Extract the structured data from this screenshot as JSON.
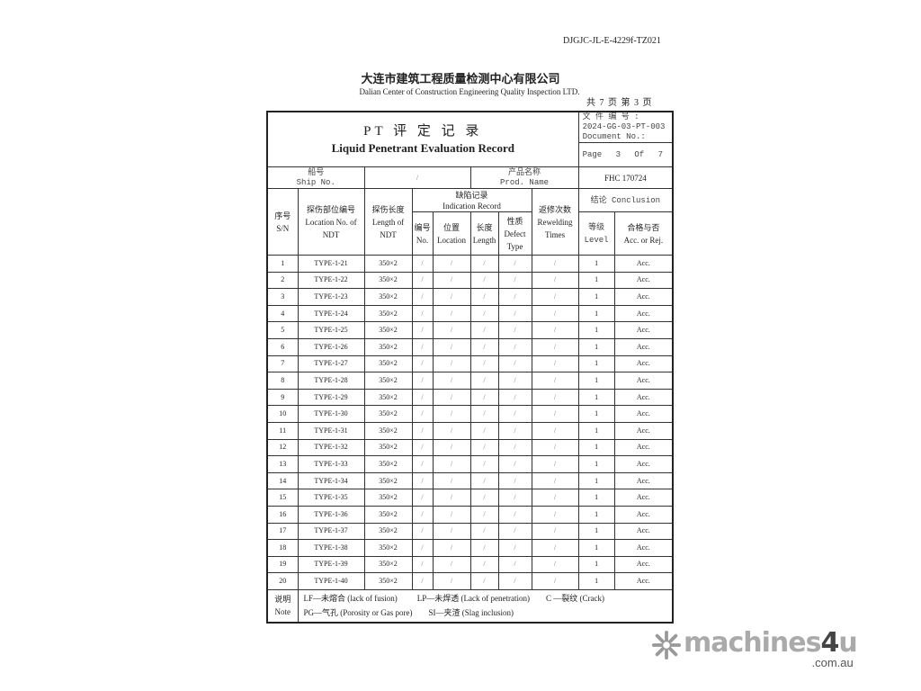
{
  "document_code": "DJGJC-JL-E-4229f-TZ021",
  "company_cn": "大连市建筑工程质量检测中心有限公司",
  "company_en": "Dalian Center of Construction Engineering Quality Inspection LTD.",
  "page_count_cn": "共 7 页   第 3 页",
  "form": {
    "title_cn": "PT 评 定 记 录",
    "title_en": "Liquid Penetrant Evaluation Record",
    "doc_no_label_cn": "文 件 编 号 :",
    "doc_no_value": "2024-GG-03-PT-003",
    "doc_no_label_en": "Document No.:",
    "page_label": "Page 3 Of 7",
    "ship_no_cn": "船号",
    "ship_no_en": "Ship No.",
    "ship_no_value": "/",
    "prod_name_cn": "产品名称",
    "prod_name_en": "Prod. Name",
    "prod_name_value": "FHC 170724"
  },
  "headers": {
    "sn_cn": "序号",
    "sn_en": "S/N",
    "loc_cn": "探伤部位编号",
    "loc_en": "Location No. of NDT",
    "len_cn": "探伤长度",
    "len_en": "Length of NDT",
    "ind_cn": "缺陷记录",
    "ind_en": "Indication Record",
    "no_cn": "编号",
    "no_en": "No.",
    "pos_cn": "位置",
    "pos_en": "Location",
    "ilen_cn": "长度",
    "ilen_en": "Length",
    "type_cn": "性质",
    "type_en": "Defect Type",
    "rew_cn": "返修次数",
    "rew_en": "Rewelding Times",
    "concl": "结论 Conclusion",
    "level_cn": "等级",
    "level_en": "Level",
    "acc_cn": "合格与否",
    "acc_en": "Acc. or Rej."
  },
  "rows": [
    {
      "sn": "1",
      "loc": "TYPE-1-21",
      "len": "350×2",
      "no": "/",
      "pos": "/",
      "ilen": "/",
      "type": "/",
      "rew": "/",
      "level": "1",
      "acc": "Acc."
    },
    {
      "sn": "2",
      "loc": "TYPE-1-22",
      "len": "350×2",
      "no": "/",
      "pos": "/",
      "ilen": "/",
      "type": "/",
      "rew": "/",
      "level": "1",
      "acc": "Acc."
    },
    {
      "sn": "3",
      "loc": "TYPE-1-23",
      "len": "350×2",
      "no": "/",
      "pos": "/",
      "ilen": "/",
      "type": "/",
      "rew": "/",
      "level": "1",
      "acc": "Acc."
    },
    {
      "sn": "4",
      "loc": "TYPE-1-24",
      "len": "350×2",
      "no": "/",
      "pos": "/",
      "ilen": "/",
      "type": "/",
      "rew": "/",
      "level": "1",
      "acc": "Acc."
    },
    {
      "sn": "5",
      "loc": "TYPE-1-25",
      "len": "350×2",
      "no": "/",
      "pos": "/",
      "ilen": "/",
      "type": "/",
      "rew": "/",
      "level": "1",
      "acc": "Acc."
    },
    {
      "sn": "6",
      "loc": "TYPE-1-26",
      "len": "350×2",
      "no": "/",
      "pos": "/",
      "ilen": "/",
      "type": "/",
      "rew": "/",
      "level": "1",
      "acc": "Acc."
    },
    {
      "sn": "7",
      "loc": "TYPE-1-27",
      "len": "350×2",
      "no": "/",
      "pos": "/",
      "ilen": "/",
      "type": "/",
      "rew": "/",
      "level": "1",
      "acc": "Acc."
    },
    {
      "sn": "8",
      "loc": "TYPE-1-28",
      "len": "350×2",
      "no": "/",
      "pos": "/",
      "ilen": "/",
      "type": "/",
      "rew": "/",
      "level": "1",
      "acc": "Acc."
    },
    {
      "sn": "9",
      "loc": "TYPE-1-29",
      "len": "350×2",
      "no": "/",
      "pos": "/",
      "ilen": "/",
      "type": "/",
      "rew": "/",
      "level": "1",
      "acc": "Acc."
    },
    {
      "sn": "10",
      "loc": "TYPE-1-30",
      "len": "350×2",
      "no": "/",
      "pos": "/",
      "ilen": "/",
      "type": "/",
      "rew": "/",
      "level": "1",
      "acc": "Acc."
    },
    {
      "sn": "11",
      "loc": "TYPE-1-31",
      "len": "350×2",
      "no": "/",
      "pos": "/",
      "ilen": "/",
      "type": "/",
      "rew": "/",
      "level": "1",
      "acc": "Acc."
    },
    {
      "sn": "12",
      "loc": "TYPE-1-32",
      "len": "350×2",
      "no": "/",
      "pos": "/",
      "ilen": "/",
      "type": "/",
      "rew": "/",
      "level": "1",
      "acc": "Acc."
    },
    {
      "sn": "13",
      "loc": "TYPE-1-33",
      "len": "350×2",
      "no": "/",
      "pos": "/",
      "ilen": "/",
      "type": "/",
      "rew": "/",
      "level": "1",
      "acc": "Acc."
    },
    {
      "sn": "14",
      "loc": "TYPE-1-34",
      "len": "350×2",
      "no": "/",
      "pos": "/",
      "ilen": "/",
      "type": "/",
      "rew": "/",
      "level": "1",
      "acc": "Acc."
    },
    {
      "sn": "15",
      "loc": "TYPE-1-35",
      "len": "350×2",
      "no": "/",
      "pos": "/",
      "ilen": "/",
      "type": "/",
      "rew": "/",
      "level": "1",
      "acc": "Acc."
    },
    {
      "sn": "16",
      "loc": "TYPE-1-36",
      "len": "350×2",
      "no": "/",
      "pos": "/",
      "ilen": "/",
      "type": "/",
      "rew": "/",
      "level": "1",
      "acc": "Acc."
    },
    {
      "sn": "17",
      "loc": "TYPE-1-37",
      "len": "350×2",
      "no": "/",
      "pos": "/",
      "ilen": "/",
      "type": "/",
      "rew": "/",
      "level": "1",
      "acc": "Acc."
    },
    {
      "sn": "18",
      "loc": "TYPE-1-38",
      "len": "350×2",
      "no": "/",
      "pos": "/",
      "ilen": "/",
      "type": "/",
      "rew": "/",
      "level": "1",
      "acc": "Acc."
    },
    {
      "sn": "19",
      "loc": "TYPE-1-39",
      "len": "350×2",
      "no": "/",
      "pos": "/",
      "ilen": "/",
      "type": "/",
      "rew": "/",
      "level": "1",
      "acc": "Acc."
    },
    {
      "sn": "20",
      "loc": "TYPE-1-40",
      "len": "350×2",
      "no": "/",
      "pos": "/",
      "ilen": "/",
      "type": "/",
      "rew": "/",
      "level": "1",
      "acc": "Acc."
    }
  ],
  "note": {
    "label_cn": "说明",
    "label_en": "Note",
    "lf": "LF—未熔合 (lack of fusion)",
    "lp": "LP—未焊透 (Lack of penetration)",
    "c": "C —裂纹 (Crack)",
    "pg": "PG—气孔 (Porosity or Gas pore)",
    "si": "SI—夹渣 (Slag inclusion)"
  },
  "watermark": {
    "brand": "machines4u",
    "domain": ".com.au"
  }
}
